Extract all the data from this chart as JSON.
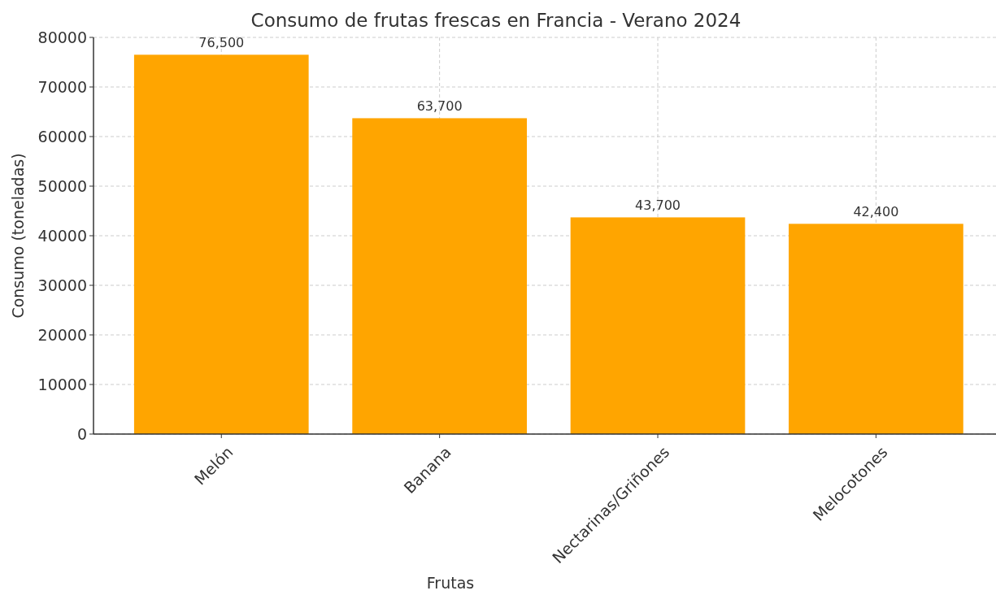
{
  "chart_data": {
    "type": "bar",
    "title": "Consumo de frutas frescas en Francia - Verano 2024",
    "xlabel": "Frutas",
    "ylabel": "Consumo (toneladas)",
    "categories": [
      "Melón",
      "Banana",
      "Nectarinas/Griñones",
      "Melocotones"
    ],
    "values": [
      76500,
      63700,
      43700,
      42400
    ],
    "value_labels": [
      "76,500",
      "63,700",
      "43,700",
      "42,400"
    ],
    "color": "#ffa500",
    "ylim": [
      0,
      80000
    ],
    "yticks": [
      0,
      10000,
      20000,
      30000,
      40000,
      50000,
      60000,
      70000,
      80000
    ],
    "grid": true
  }
}
